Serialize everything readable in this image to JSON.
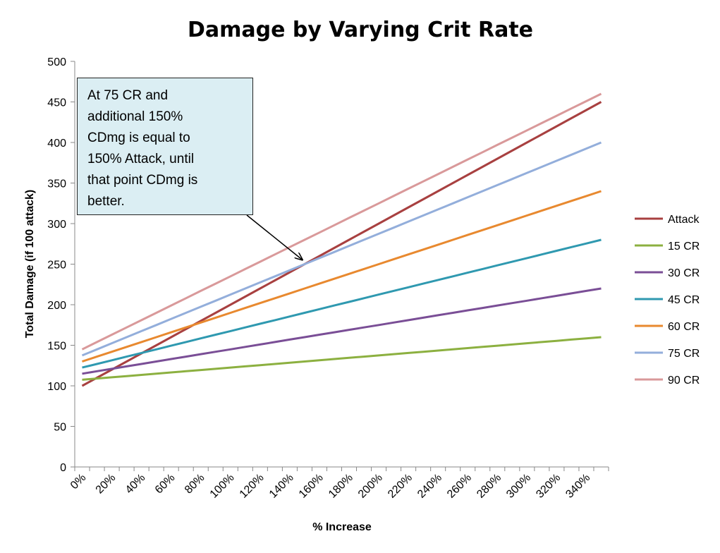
{
  "chart_data": {
    "type": "line",
    "title": "Damage by Varying Crit Rate",
    "xlabel": "% Increase",
    "ylabel": "Total Damage (if 100 attack)",
    "x": [
      0,
      10,
      20,
      30,
      40,
      50,
      60,
      70,
      80,
      90,
      100,
      110,
      120,
      130,
      140,
      150,
      160,
      170,
      180,
      190,
      200,
      210,
      220,
      230,
      240,
      250,
      260,
      270,
      280,
      290,
      300,
      310,
      320,
      330,
      340,
      350
    ],
    "x_tick_labels": [
      "0%",
      "20%",
      "40%",
      "60%",
      "80%",
      "100%",
      "120%",
      "140%",
      "160%",
      "180%",
      "200%",
      "220%",
      "240%",
      "260%",
      "280%",
      "300%",
      "320%",
      "340%"
    ],
    "ylim": [
      0,
      500
    ],
    "y_ticks": [
      0,
      50,
      100,
      150,
      200,
      250,
      300,
      350,
      400,
      450,
      500
    ],
    "grid": false,
    "legend": "right",
    "series": [
      {
        "name": "Attack",
        "color": "#a84040",
        "start": 100,
        "slope": 1.0
      },
      {
        "name": "15 CR",
        "color": "#8cb040",
        "start": 107.5,
        "slope": 0.15
      },
      {
        "name": "30 CR",
        "color": "#7a4e96",
        "start": 115,
        "slope": 0.3
      },
      {
        "name": "45 CR",
        "color": "#2f99b0",
        "start": 122.5,
        "slope": 0.45
      },
      {
        "name": "60 CR",
        "color": "#e8892f",
        "start": 130,
        "slope": 0.6
      },
      {
        "name": "75 CR",
        "color": "#93aedb",
        "start": 137.5,
        "slope": 0.75
      },
      {
        "name": "90 CR",
        "color": "#d9999a",
        "start": 145,
        "slope": 0.9
      }
    ],
    "annotation": {
      "text": "At 75 CR and additional 150% CDmg is equal to 150% Attack, until that point CDmg is better.",
      "lines": [
        "At 75 CR and",
        "additional 150%",
        "CDmg is equal to",
        "150% Attack, until",
        "that point CDmg is",
        "better."
      ],
      "points_to": {
        "x": 150,
        "y": 250
      }
    }
  }
}
